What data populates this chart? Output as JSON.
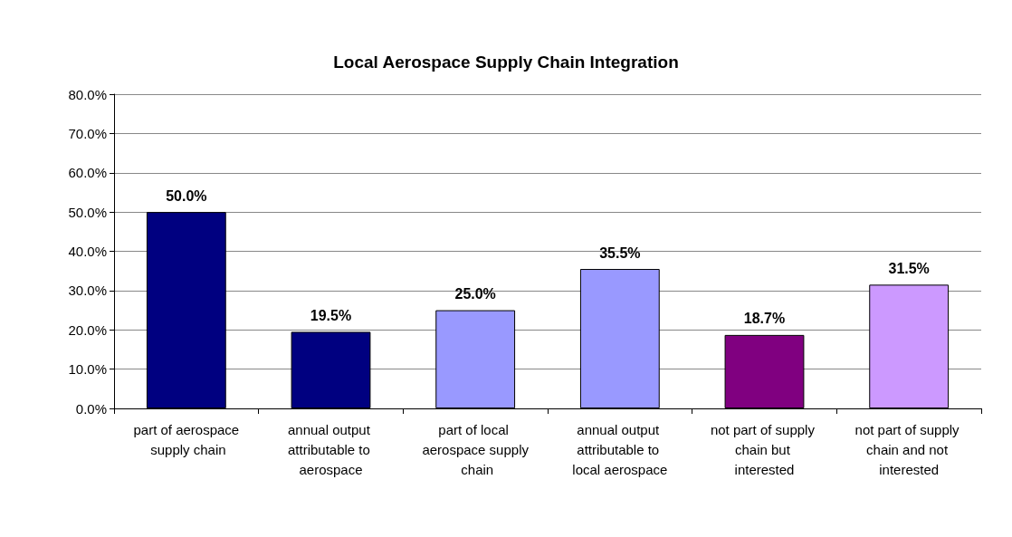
{
  "chart_data": {
    "type": "bar",
    "title": "Local Aerospace Supply Chain Integration",
    "categories": [
      "part of aerospace supply chain",
      "annual output attributable to aerospace",
      "part of local aerospace supply chain",
      "annual output attributable to local aerospace",
      "not part of supply chain but interested",
      "not part of supply chain and not interested"
    ],
    "values": [
      50.0,
      19.5,
      25.0,
      35.5,
      18.7,
      31.5
    ],
    "colors": [
      "#000080",
      "#000080",
      "#9999ff",
      "#9999ff",
      "#800080",
      "#cc99ff"
    ],
    "value_labels": [
      "50.0%",
      "19.5%",
      "25.0%",
      "35.5%",
      "18.7%",
      "31.5%"
    ],
    "ylim": [
      0,
      80
    ],
    "yticks": [
      {
        "value": 0,
        "label": "0.0%"
      },
      {
        "value": 10,
        "label": "10.0%"
      },
      {
        "value": 20,
        "label": "20.0%"
      },
      {
        "value": 30,
        "label": "30.0%"
      },
      {
        "value": 40,
        "label": "40.0%"
      },
      {
        "value": 50,
        "label": "50.0%"
      },
      {
        "value": 60,
        "label": "60.0%"
      },
      {
        "value": 70,
        "label": "70.0%"
      },
      {
        "value": 80,
        "label": "80.0%"
      }
    ],
    "grid": "y"
  }
}
